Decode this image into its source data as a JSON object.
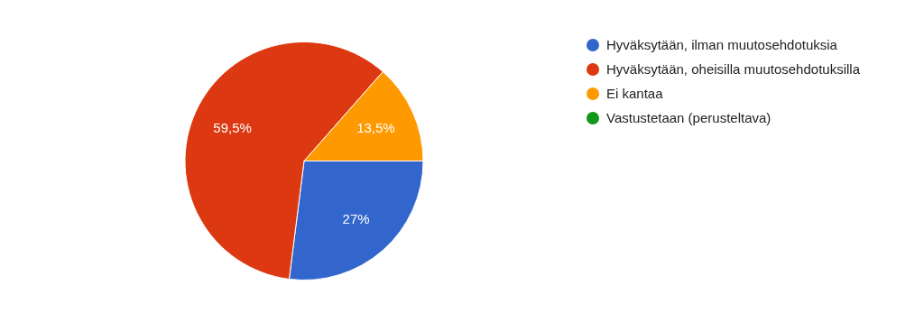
{
  "chart_data": {
    "type": "pie",
    "categories": [
      "Hyväksytään, ilman muutosehdotuksia",
      "Hyväksytään, oheisilla muutosehdotuksilla",
      "Ei kantaa",
      "Vastustetaan (perusteltava)"
    ],
    "values": [
      27,
      59.5,
      13.5,
      0
    ],
    "colors": [
      "#3366cc",
      "#dc3912",
      "#ff9900",
      "#109618"
    ],
    "value_labels": [
      "27%",
      "59,5%",
      "13,5%",
      null
    ],
    "legend": "right"
  }
}
